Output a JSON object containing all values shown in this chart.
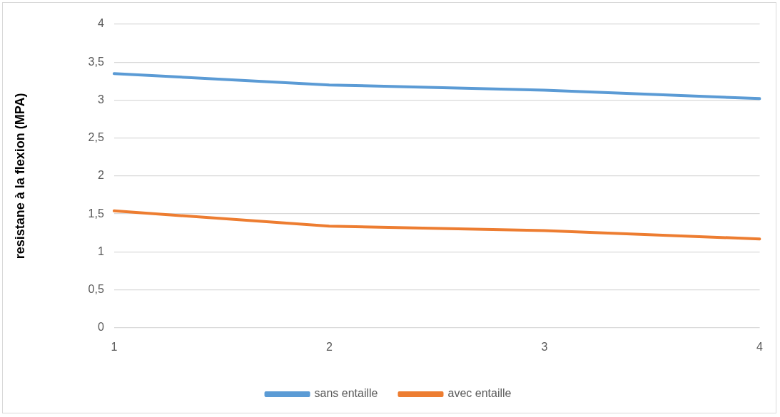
{
  "chart_data": {
    "type": "line",
    "ylabel": "resistane à la flexion (MPA)",
    "categories": [
      "1",
      "2",
      "3",
      "4"
    ],
    "series": [
      {
        "name": "sans entaille",
        "color": "#5b9bd5",
        "values": [
          3.35,
          3.2,
          3.13,
          3.02
        ]
      },
      {
        "name": "avec entaille",
        "color": "#ed7d31",
        "values": [
          1.54,
          1.34,
          1.28,
          1.17
        ]
      }
    ],
    "ylim": [
      0,
      4
    ],
    "yticks": [
      0,
      {
        "value": 0.5,
        "label": "0,5"
      },
      1,
      {
        "value": 1.5,
        "label": "1,5"
      },
      2,
      {
        "value": 2.5,
        "label": "2,5"
      },
      3,
      {
        "value": 3.5,
        "label": "3,5"
      },
      4
    ],
    "grid": "y",
    "legend": "bottom",
    "marker": "none",
    "line_style": "solid"
  }
}
